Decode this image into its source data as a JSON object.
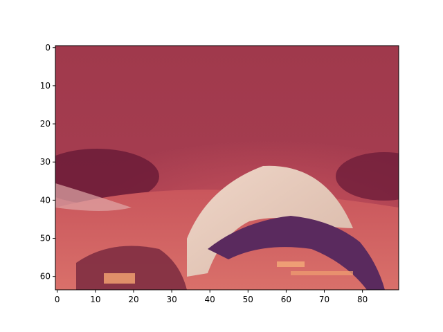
{
  "chart_data": {
    "type": "heatmap",
    "title": "",
    "xlabel": "",
    "ylabel": "",
    "image_size": [
      90,
      64
    ],
    "xlim": [
      -0.5,
      89.5
    ],
    "ylim": [
      63.5,
      -0.5
    ],
    "y_axis_inverted": true,
    "grid": false,
    "legend": "none",
    "x_ticks": [
      0,
      10,
      20,
      30,
      40,
      50,
      60,
      70,
      80
    ],
    "y_ticks": [
      0,
      10,
      20,
      30,
      40,
      50,
      60
    ],
    "x_tick_labels": [
      "0",
      "10",
      "20",
      "30",
      "40",
      "50",
      "60",
      "70",
      "80"
    ],
    "y_tick_labels": [
      "0",
      "10",
      "20",
      "30",
      "40",
      "50",
      "60"
    ],
    "description_colors": {
      "background_top": "#a0384c",
      "band_mid": "#c24a58",
      "dark_shadow": "#6a1a36",
      "light_highlight": "#e6c9bd",
      "purple_band": "#5a2a5e",
      "orange_accent": "#f0a070",
      "pink_bottom": "#d96a6a"
    }
  }
}
